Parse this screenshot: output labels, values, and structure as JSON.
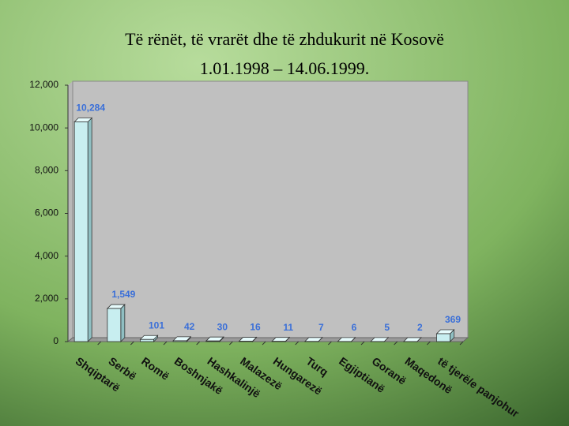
{
  "chart_data": {
    "type": "bar",
    "title": "Të rënët, të vrarët dhe të zhdukurit në Kosovë",
    "subtitle": "1.01.1998 – 14.06.1999.",
    "categories": [
      "Shqiptarë",
      "Serbë",
      "Romë",
      "Boshnjakë",
      "Hashkalinjë",
      "Malazezë",
      "Hungarezë",
      "Turq",
      "Egjiptianë",
      "Goranë",
      "Maqedonë",
      "të tjerë/e panjohur"
    ],
    "values": [
      10284,
      1549,
      101,
      42,
      30,
      16,
      11,
      7,
      6,
      5,
      2,
      369
    ],
    "value_labels": [
      "10,284",
      "1,549",
      "101",
      "42",
      "30",
      "16",
      "11",
      "7",
      "6",
      "5",
      "2",
      "369"
    ],
    "color": "#c8eef0",
    "ylim": [
      0,
      12000
    ],
    "yticks": [
      0,
      {
        "value": 2000,
        "label": "2,000"
      },
      {
        "value": 4000,
        "label": "4,000"
      },
      {
        "value": 6000,
        "label": "6,000"
      },
      {
        "value": 8000,
        "label": "8,000"
      },
      {
        "value": 10000,
        "label": "10,000"
      },
      {
        "value": 12000,
        "label": "12,000"
      }
    ],
    "grid": false
  }
}
